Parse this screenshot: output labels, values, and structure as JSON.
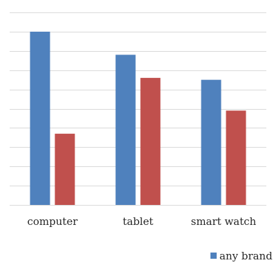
{
  "chart_data": {
    "type": "bar",
    "categories": [
      "computer",
      "tablet",
      "smart watch"
    ],
    "series": [
      {
        "name": "any brand",
        "values": [
          9.0,
          7.8,
          6.5
        ],
        "color": "#4f81bd"
      },
      {
        "values": [
          3.7,
          6.6,
          4.9
        ],
        "color": "#c0504d"
      }
    ],
    "ylim": [
      0,
      10
    ],
    "ytick_step": 1,
    "show_y_tick_labels": false,
    "grid": true,
    "legend": {
      "placement": "bottom-right"
    }
  }
}
